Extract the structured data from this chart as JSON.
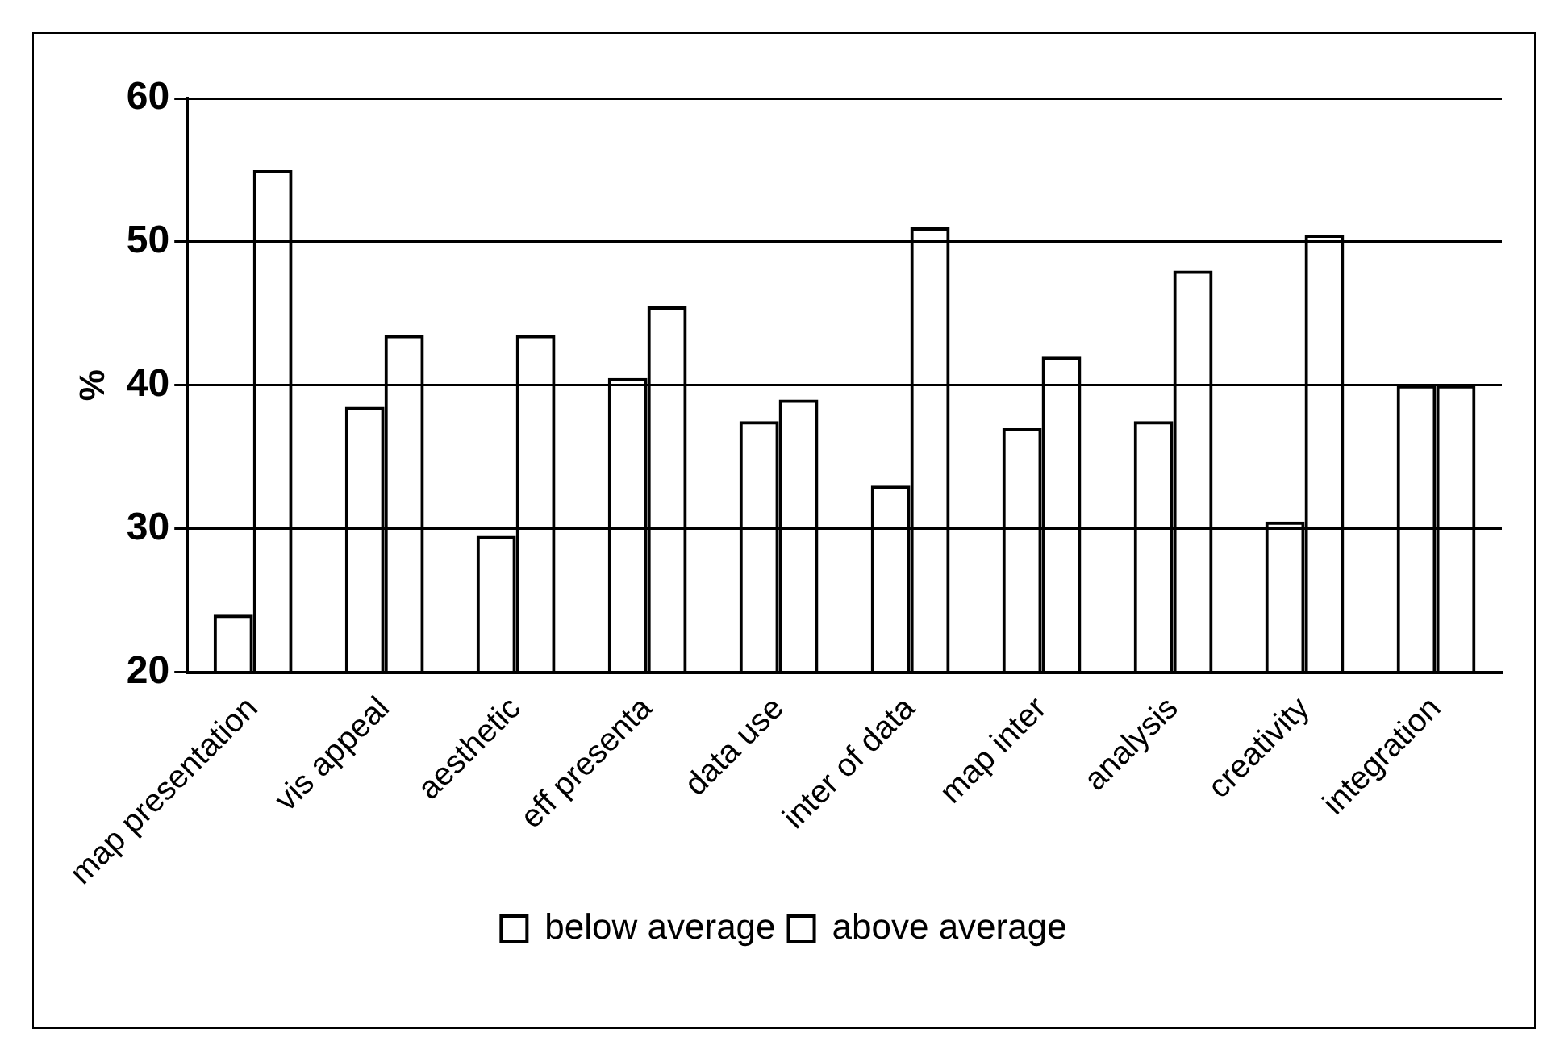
{
  "chart_data": {
    "type": "bar",
    "ylabel": "%",
    "categories": [
      "map presentation",
      "vis appeal",
      "aesthetic",
      "eff presenta",
      "data use",
      "inter of data",
      "map inter",
      "analysis",
      "creativity",
      "integration"
    ],
    "series": [
      {
        "name": "below average",
        "color": "#000000",
        "values": [
          24,
          38.5,
          29.5,
          40.5,
          37.5,
          33,
          37,
          37.5,
          30.5,
          40
        ]
      },
      {
        "name": "above average",
        "color": "#000000",
        "values": [
          55,
          43.5,
          43.5,
          45.5,
          39,
          51,
          42,
          48,
          50.5,
          40
        ]
      }
    ],
    "ylim": [
      20,
      60
    ],
    "yticks": [
      20,
      30,
      40,
      50,
      60
    ],
    "grid": "y",
    "legend": "bottom"
  }
}
